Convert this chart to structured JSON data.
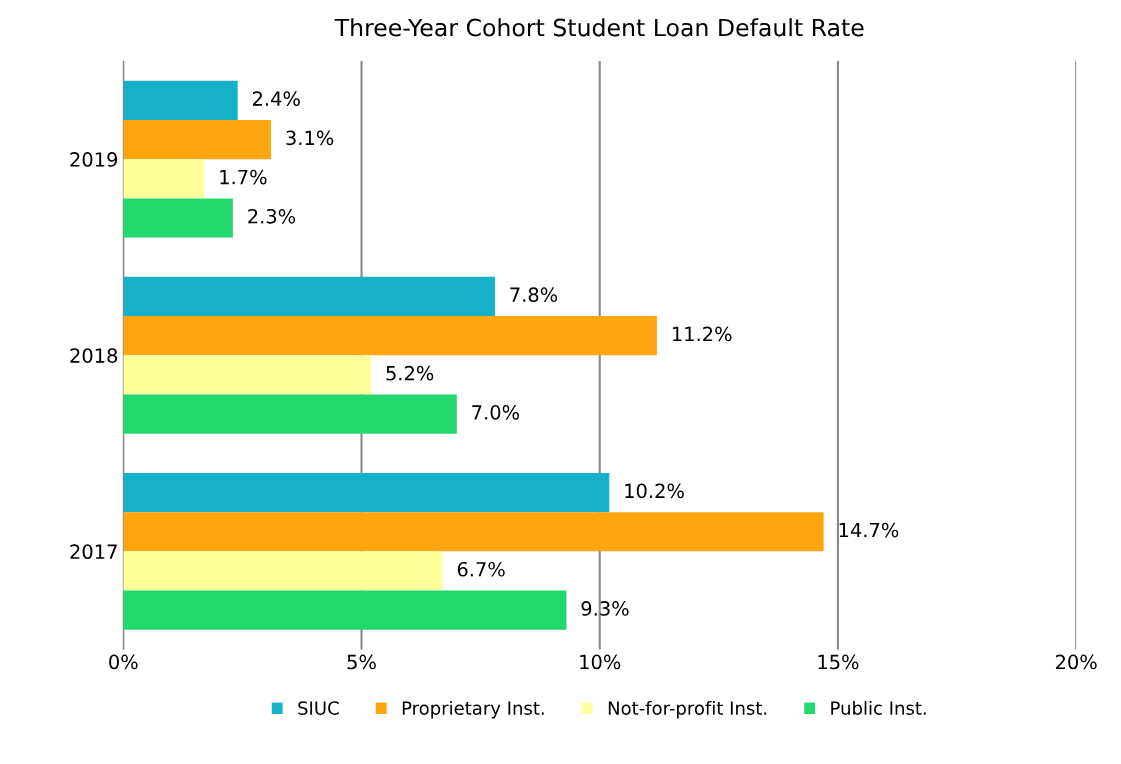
{
  "chart_data": {
    "type": "bar",
    "orientation": "horizontal",
    "title": "Three-Year Cohort Student Loan Default Rate",
    "categories": [
      "2019",
      "2018",
      "2017"
    ],
    "series": [
      {
        "name": "SIUC",
        "color": "#17b0c9",
        "values": [
          2.4,
          7.8,
          10.2
        ],
        "value_labels": [
          "2.4%",
          "7.8%",
          "10.2%"
        ]
      },
      {
        "name": "Proprietary Inst.",
        "color": "#ffa510",
        "values": [
          3.1,
          11.2,
          14.7
        ],
        "value_labels": [
          "3.1%",
          "11.2%",
          "14.7%"
        ]
      },
      {
        "name": "Not-for-profit Inst.",
        "color": "#ffff9c",
        "values": [
          1.7,
          5.2,
          6.7
        ],
        "value_labels": [
          "1.7%",
          "5.2%",
          "6.7%"
        ]
      },
      {
        "name": "Public Inst.",
        "color": "#22d86c",
        "values": [
          2.3,
          7.0,
          9.3
        ],
        "value_labels": [
          "2.3%",
          "7.0%",
          "9.3%"
        ]
      }
    ],
    "xlim": [
      0,
      20
    ],
    "xticks": [
      {
        "value": 0,
        "label": "0%"
      },
      {
        "value": 5,
        "label": "5%"
      },
      {
        "value": 10,
        "label": "10%"
      },
      {
        "value": 15,
        "label": "15%"
      },
      {
        "value": 20,
        "label": "20%"
      }
    ],
    "grid": "x",
    "legend": "bottom"
  }
}
